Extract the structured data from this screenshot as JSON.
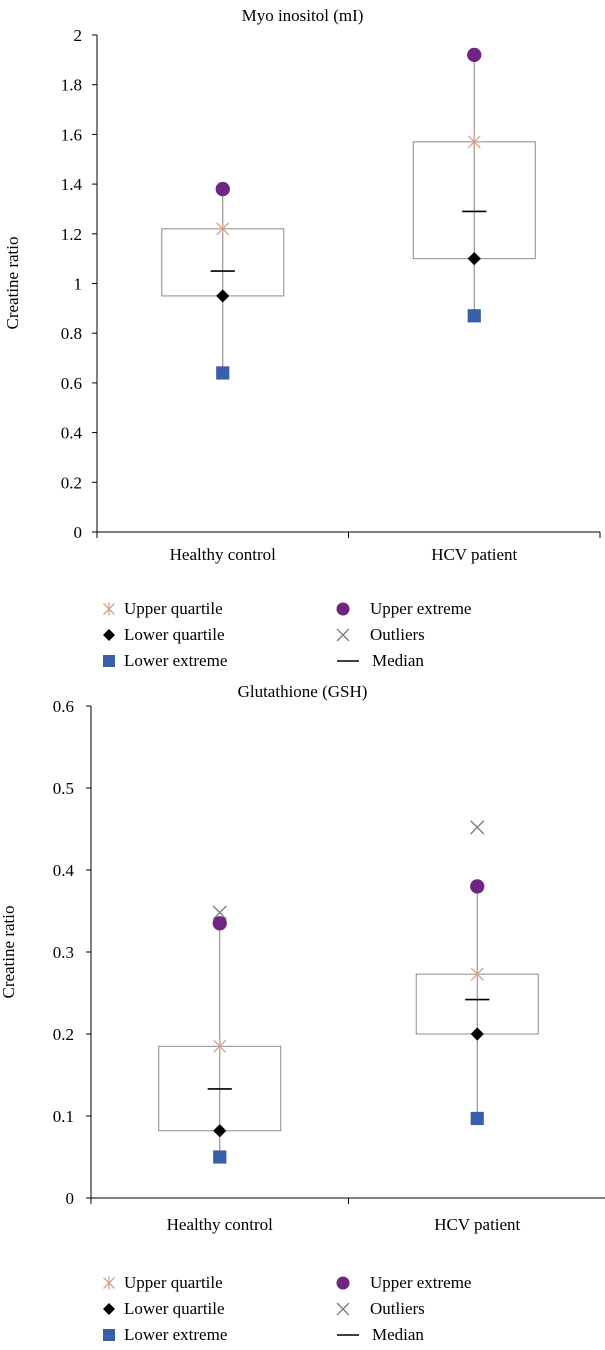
{
  "colors": {
    "upper_quartile": "#d9a08a",
    "lower_quartile": "#000000",
    "lower_extreme": "#3b5ea8",
    "upper_extreme": "#6f2582",
    "outliers": "#808080",
    "median": "#000000",
    "box_stroke": "#8c8c8c",
    "whisker": "#808080",
    "axis": "#000000"
  },
  "legend": [
    {
      "key": "upper_quartile",
      "label": "Upper quartile",
      "icon": "asterisk-icon"
    },
    {
      "key": "lower_quartile",
      "label": "Lower quartile",
      "icon": "diamond-icon"
    },
    {
      "key": "lower_extreme",
      "label": "Lower extreme",
      "icon": "square-icon"
    },
    {
      "key": "upper_extreme",
      "label": "Upper extreme",
      "icon": "circle-icon"
    },
    {
      "key": "outliers",
      "label": "Outliers",
      "icon": "x-icon"
    },
    {
      "key": "median",
      "label": "Median",
      "icon": "dash-icon"
    }
  ],
  "chart_data": [
    {
      "type": "box",
      "title": "Myo inositol (mI)",
      "xlabel": "",
      "ylabel": "Creatine ratio",
      "ylim": [
        0,
        2
      ],
      "yticks": [
        "0",
        "0.2",
        "0.4",
        "0.6",
        "0.8",
        "1",
        "1.2",
        "1.4",
        "1.6",
        "1.8",
        "2"
      ],
      "grid": false,
      "legend_position": "bottom",
      "categories": [
        "Healthy control",
        "HCV patient"
      ],
      "series": [
        {
          "name": "Upper quartile",
          "values": [
            1.22,
            1.57
          ]
        },
        {
          "name": "Lower quartile",
          "values": [
            0.95,
            1.1
          ]
        },
        {
          "name": "Lower extreme",
          "values": [
            0.64,
            0.87
          ]
        },
        {
          "name": "Upper extreme",
          "values": [
            1.38,
            1.92
          ]
        },
        {
          "name": "Outliers",
          "values": [
            null,
            null
          ]
        },
        {
          "name": "Median",
          "values": [
            1.05,
            1.29
          ]
        }
      ]
    },
    {
      "type": "box",
      "title": "Glutathione (GSH)",
      "xlabel": "",
      "ylabel": "Creatine ratio",
      "ylim": [
        0,
        0.6
      ],
      "yticks": [
        "0",
        "0.1",
        "0.2",
        "0.3",
        "0.4",
        "0.5",
        "0.6"
      ],
      "grid": false,
      "legend_position": "bottom",
      "categories": [
        "Healthy control",
        "HCV patient"
      ],
      "series": [
        {
          "name": "Upper quartile",
          "values": [
            0.185,
            0.273
          ]
        },
        {
          "name": "Lower quartile",
          "values": [
            0.082,
            0.2
          ]
        },
        {
          "name": "Lower extreme",
          "values": [
            0.05,
            0.097
          ]
        },
        {
          "name": "Upper extreme",
          "values": [
            0.335,
            0.38
          ]
        },
        {
          "name": "Outliers",
          "values": [
            0.348,
            0.452
          ]
        },
        {
          "name": "Median",
          "values": [
            0.133,
            0.242
          ]
        }
      ]
    }
  ]
}
